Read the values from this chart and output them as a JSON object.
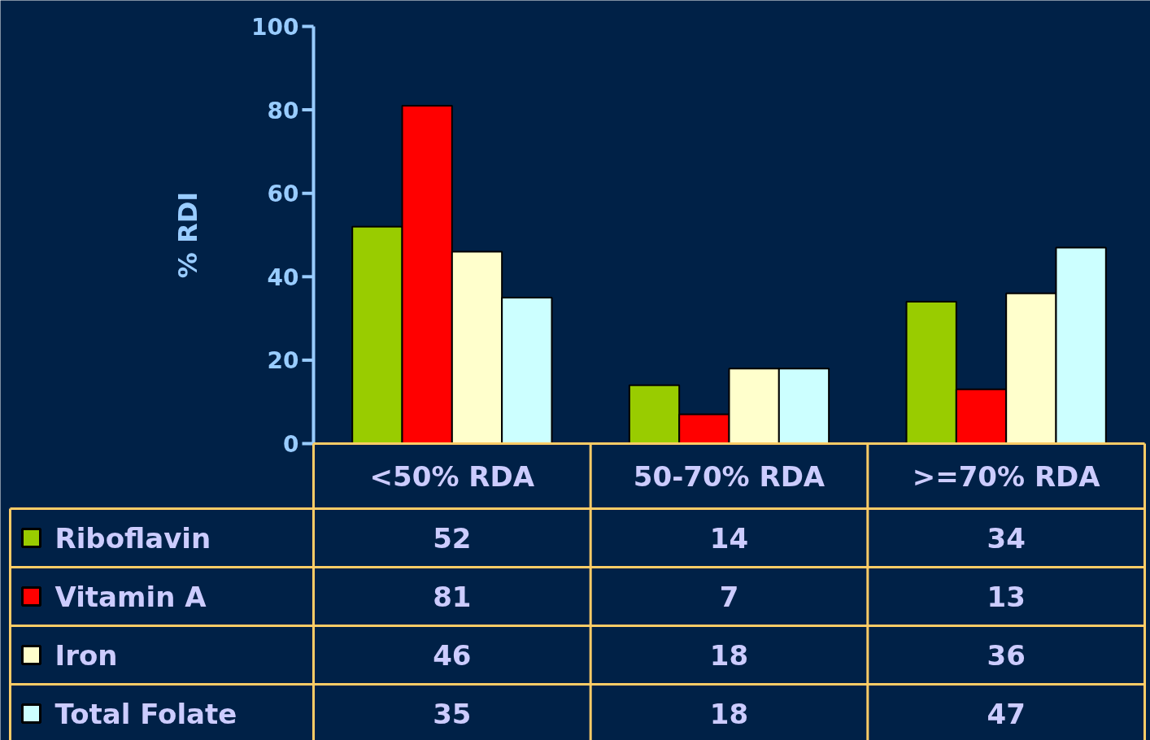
{
  "chart_data": {
    "type": "bar",
    "ylabel": "% RDI",
    "categories": [
      "<50% RDA",
      "50-70% RDA",
      ">=70% RDA"
    ],
    "series": [
      {
        "name": "Riboflavin",
        "color": "#99cc00",
        "values": [
          52,
          14,
          34
        ]
      },
      {
        "name": "Vitamin A",
        "color": "#ff0000",
        "values": [
          81,
          7,
          13
        ]
      },
      {
        "name": "Iron",
        "color": "#ffffcc",
        "values": [
          46,
          18,
          36
        ]
      },
      {
        "name": "Total Folate",
        "color": "#ccffff",
        "values": [
          35,
          18,
          47
        ]
      }
    ],
    "ylim": [
      0,
      100
    ],
    "yticks": [
      0,
      20,
      40,
      60,
      80,
      100
    ],
    "grid": false,
    "legend": "bottom",
    "data_labels": true
  }
}
